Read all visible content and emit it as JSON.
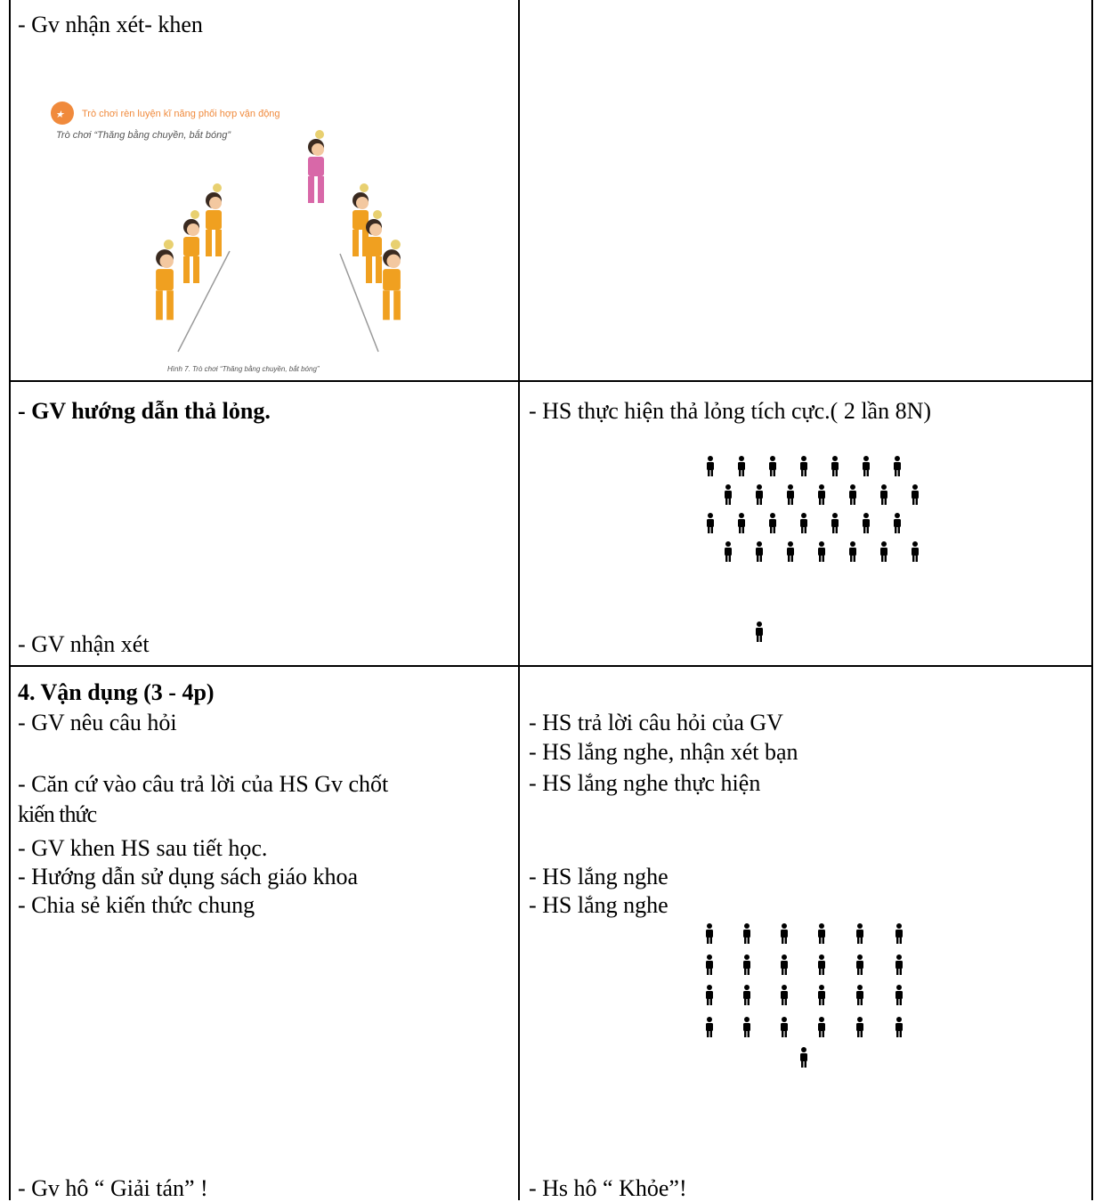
{
  "table": {
    "rows": [
      {
        "left": [
          "- Gv nhận xét- khen"
        ],
        "right": []
      },
      {
        "left": [
          "- GV hướng dẫn thả lỏng.",
          "- GV nhận xét"
        ],
        "right": [
          "- HS thực hiện thả lỏng tích cực.( 2 lần 8N)"
        ]
      },
      {
        "left": [
          "4. Vận dụng (3 - 4p)",
          "- GV nêu câu hỏi",
          "- Căn cứ vào câu trả lời của HS Gv chốt",
          "kiến thức",
          "- GV khen HS sau tiết học.",
          "- Hướng dẫn sử dụng sách giáo khoa",
          "- Chia sẻ kiến thức chung",
          "- Gv hô “ Giải tán” !"
        ],
        "right": [
          "- HS trả lời câu hỏi của GV",
          "- HS lắng nghe, nhận xét bạn",
          "- HS lắng nghe thực hiện",
          "- HS lắng nghe",
          "- HS lắng nghe",
          "- Hs hô “ Khỏe”!"
        ]
      }
    ]
  },
  "figure": {
    "header": "Trò chơi rèn luyện kĩ năng phối hợp vận động",
    "subtitle": "Trò chơi “Thăng bằng chuyền, bắt bóng”",
    "caption": "Hình 7. Trò chơi “Thăng bằng chuyền, bắt bóng”"
  }
}
